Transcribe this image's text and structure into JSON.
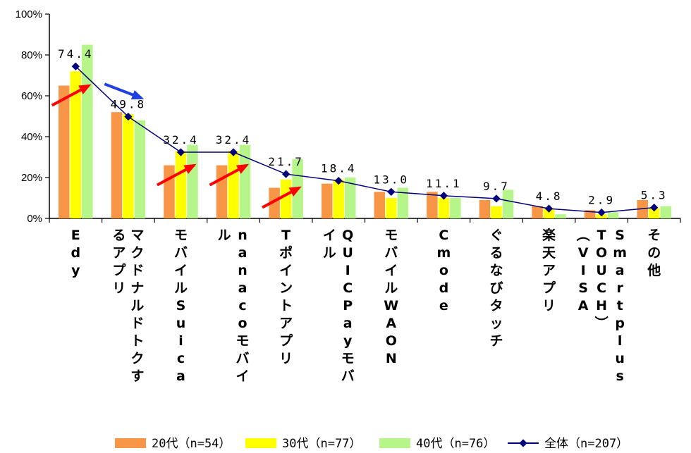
{
  "chart_data": {
    "type": "bar",
    "title": "",
    "xlabel": "",
    "ylabel": "",
    "ylim": [
      0,
      100
    ],
    "yticks": [
      "0%",
      "20%",
      "40%",
      "60%",
      "80%",
      "100%"
    ],
    "categories": [
      "Edy",
      "マクドナルドトクするアプリ",
      "モバイルSuica",
      "nanacoモバイル",
      "Tポイントアプリ",
      "QUICPayモバイル",
      "モバイルWAON",
      "Cmode",
      "ぐるなびタッチ",
      "楽天アプリ",
      "Smartplus（VISA TOUCH）",
      "その他"
    ],
    "category_columns": [
      [
        "Edy"
      ],
      [
        "マクドナルドトクす",
        "るアプリ"
      ],
      [
        "モバイルSuica"
      ],
      [
        "nanacoモバイ",
        "ル"
      ],
      [
        "Tポイントアプリ"
      ],
      [
        "QUICPayモバ",
        "イル"
      ],
      [
        "モバイルWAON"
      ],
      [
        "Cmode"
      ],
      [
        "ぐるなびタッチ"
      ],
      [
        "楽天アプリ"
      ],
      [
        "Smartplus",
        "TOUCH）",
        "（VISA"
      ],
      [
        "その他"
      ]
    ],
    "series": [
      {
        "name": "20代（n=54）",
        "kind": "bar",
        "color": "#f79646",
        "values": [
          65,
          52,
          26,
          26,
          15,
          17,
          13,
          13,
          9,
          6,
          4,
          9
        ]
      },
      {
        "name": "30代（n=77）",
        "kind": "bar",
        "color": "#ffff00",
        "values": [
          72,
          51,
          33,
          33,
          19,
          19,
          10,
          10,
          6,
          5,
          2,
          5
        ]
      },
      {
        "name": "40代（n=76）",
        "kind": "bar",
        "color": "#b6f58a",
        "values": [
          85,
          48,
          36,
          36,
          29,
          20,
          15,
          10,
          14,
          2,
          3,
          6
        ]
      },
      {
        "name": "全体（n=207）",
        "kind": "line",
        "color": "#00007a",
        "values": [
          74.4,
          49.8,
          32.4,
          32.4,
          21.7,
          18.4,
          13.0,
          11.1,
          9.7,
          4.8,
          2.9,
          5.3
        ],
        "labels": [
          "74.4",
          "49.8",
          "32.4",
          "32.4",
          "21.7",
          "18.4",
          "13.0",
          "11.1",
          "9.7",
          "4.8",
          "2.9",
          "5.3"
        ]
      }
    ],
    "annotations": [
      {
        "type": "arrow",
        "color": "#ff0000",
        "category": "Edy"
      },
      {
        "type": "arrow",
        "color": "#1f3fe0",
        "category": "マクドナルドトクするアプリ"
      },
      {
        "type": "arrow",
        "color": "#ff0000",
        "category": "モバイルSuica"
      },
      {
        "type": "arrow",
        "color": "#ff0000",
        "category": "nanacoモバイル"
      },
      {
        "type": "arrow",
        "color": "#ff0000",
        "category": "Tポイントアプリ"
      }
    ],
    "grid": false,
    "legend_position": "bottom"
  }
}
